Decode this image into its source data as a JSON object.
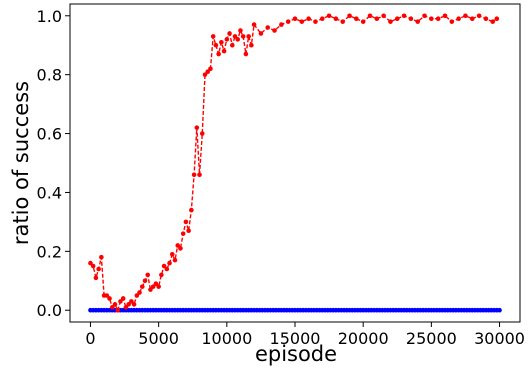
{
  "chart_data": {
    "type": "line",
    "title": "",
    "xlabel": "episode",
    "ylabel": "ratio of success",
    "xlim": [
      -1500,
      31500
    ],
    "ylim": [
      -0.04,
      1.04
    ],
    "x_ticks": [
      0,
      5000,
      10000,
      15000,
      20000,
      25000,
      30000
    ],
    "y_ticks": [
      0.0,
      0.2,
      0.4,
      0.6,
      0.8,
      1.0
    ],
    "x_tick_labels": [
      "0",
      "5000",
      "10000",
      "15000",
      "20000",
      "25000",
      "30000"
    ],
    "y_tick_labels": [
      "0.0",
      "0.2",
      "0.4",
      "0.6",
      "0.8",
      "1.0"
    ],
    "grid": false,
    "legend": "none",
    "series": [
      {
        "color": "#ff0000",
        "line_style": "dashed",
        "marker": "circle",
        "x": [
          0,
          200,
          400,
          600,
          800,
          1000,
          1200,
          1400,
          1600,
          1800,
          2000,
          2200,
          2400,
          2600,
          2800,
          3000,
          3200,
          3400,
          3600,
          3800,
          4000,
          4200,
          4400,
          4600,
          4800,
          5000,
          5200,
          5400,
          5600,
          5800,
          6000,
          6200,
          6400,
          6600,
          6800,
          7000,
          7200,
          7400,
          7600,
          7800,
          8000,
          8200,
          8400,
          8600,
          8800,
          9000,
          9200,
          9400,
          9600,
          9800,
          10000,
          10200,
          10400,
          10600,
          10800,
          11000,
          11200,
          11400,
          11600,
          11800,
          12000,
          12500,
          13000,
          13500,
          14000,
          14500,
          15000,
          15500,
          16000,
          16500,
          17000,
          17500,
          18000,
          18500,
          19000,
          19500,
          20000,
          20500,
          21000,
          21500,
          22000,
          22500,
          23000,
          23500,
          24000,
          24500,
          25000,
          25500,
          26000,
          26500,
          27000,
          27500,
          28000,
          28500,
          29000,
          29500,
          29800
        ],
        "y": [
          0.16,
          0.15,
          0.11,
          0.14,
          0.18,
          0.05,
          0.05,
          0.04,
          0.01,
          0.02,
          0.0,
          0.03,
          0.04,
          0.01,
          0.02,
          0.03,
          0.02,
          0.05,
          0.06,
          0.08,
          0.1,
          0.12,
          0.07,
          0.08,
          0.09,
          0.08,
          0.12,
          0.15,
          0.14,
          0.16,
          0.19,
          0.17,
          0.22,
          0.21,
          0.26,
          0.3,
          0.27,
          0.34,
          0.46,
          0.62,
          0.46,
          0.6,
          0.8,
          0.81,
          0.82,
          0.93,
          0.9,
          0.87,
          0.91,
          0.88,
          0.92,
          0.94,
          0.9,
          0.93,
          0.92,
          0.95,
          0.93,
          0.87,
          0.93,
          0.9,
          0.97,
          0.94,
          0.96,
          0.95,
          0.97,
          0.98,
          0.99,
          0.98,
          0.99,
          0.98,
          0.99,
          1.0,
          0.99,
          0.98,
          1.0,
          0.99,
          0.98,
          1.0,
          0.99,
          1.0,
          0.98,
          0.99,
          1.0,
          0.99,
          0.98,
          1.0,
          0.99,
          0.99,
          1.0,
          0.98,
          0.99,
          1.0,
          0.99,
          1.0,
          0.99,
          0.98,
          0.99
        ]
      },
      {
        "color": "#0000ff",
        "line_style": "solid",
        "marker": "circle",
        "x_start": 0,
        "x_end": 30000,
        "x_step": 200,
        "y_constant": 0.0
      }
    ]
  }
}
